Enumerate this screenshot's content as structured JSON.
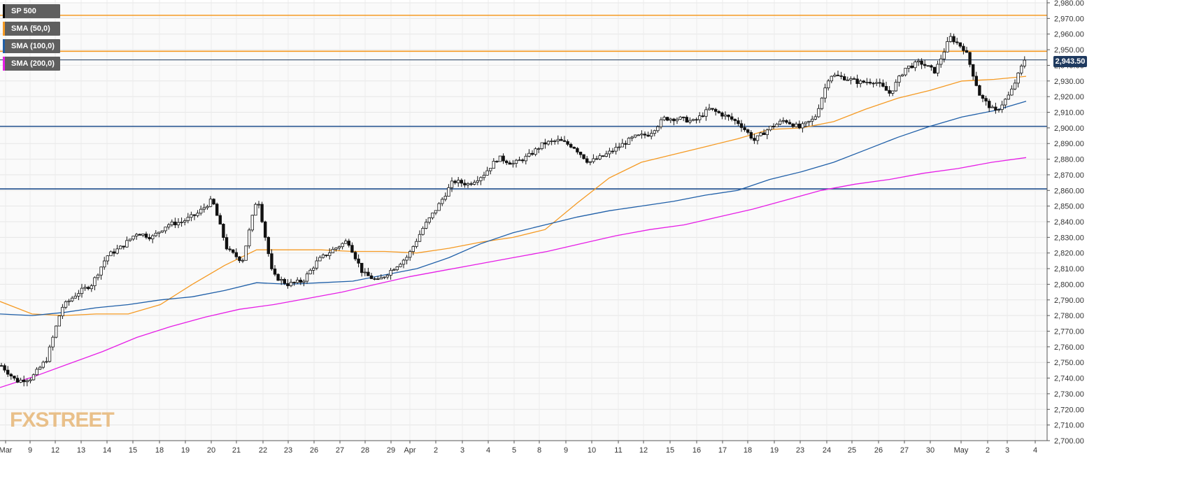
{
  "legend": [
    {
      "label": "SP 500",
      "color": "#000000"
    },
    {
      "label": "SMA (50,0)",
      "color": "#f59a23"
    },
    {
      "label": "SMA (100,0)",
      "color": "#1f5fa8"
    },
    {
      "label": "SMA (200,0)",
      "color": "#e61ee6"
    }
  ],
  "brand": {
    "text": "FXSTREET"
  },
  "price_badge": "2,943.50",
  "chart_data": {
    "type": "candlestick",
    "instrument": "SP 500",
    "timeframe": "1h",
    "y_range": [
      2700,
      2980
    ],
    "y_ticks": [
      "2,700.00",
      "2,710.00",
      "2,720.00",
      "2,730.00",
      "2,740.00",
      "2,750.00",
      "2,760.00",
      "2,770.00",
      "2,780.00",
      "2,790.00",
      "2,800.00",
      "2,810.00",
      "2,820.00",
      "2,830.00",
      "2,840.00",
      "2,850.00",
      "2,860.00",
      "2,870.00",
      "2,880.00",
      "2,890.00",
      "2,900.00",
      "2,910.00",
      "2,920.00",
      "2,930.00",
      "2,940.00",
      "2,950.00",
      "2,960.00",
      "2,970.00",
      "2,980.00"
    ],
    "x_ticks": [
      "Mar",
      "9",
      "12",
      "13",
      "14",
      "15",
      "18",
      "19",
      "20",
      "21",
      "22",
      "23",
      "26",
      "27",
      "28",
      "29",
      "Apr",
      "2",
      "3",
      "4",
      "5",
      "8",
      "9",
      "10",
      "11",
      "12",
      "15",
      "16",
      "17",
      "18",
      "19",
      "23",
      "24",
      "25",
      "26",
      "27",
      "30",
      "May",
      "2",
      "3",
      "4"
    ],
    "grid": true,
    "legend_position": "top-left",
    "horizontal_levels": [
      {
        "value": 2972,
        "color": "#f59a23"
      },
      {
        "value": 2949,
        "color": "#f59a23"
      },
      {
        "value": 2901,
        "color": "#1f4e8c"
      },
      {
        "value": 2861,
        "color": "#1f4e8c"
      },
      {
        "value": 2943.5,
        "color": "#1f3a5f"
      }
    ],
    "sma_50": [
      [
        0,
        2789
      ],
      [
        1,
        2781
      ],
      [
        2,
        2780
      ],
      [
        3,
        2781
      ],
      [
        4,
        2781
      ],
      [
        5,
        2787
      ],
      [
        6,
        2800
      ],
      [
        7,
        2812
      ],
      [
        8,
        2822
      ],
      [
        9,
        2822
      ],
      [
        10,
        2822
      ],
      [
        11,
        2821
      ],
      [
        12,
        2821
      ],
      [
        13,
        2820
      ],
      [
        14,
        2823
      ],
      [
        15,
        2827
      ],
      [
        16,
        2830
      ],
      [
        17,
        2835
      ],
      [
        18,
        2852
      ],
      [
        19,
        2868
      ],
      [
        20,
        2878
      ],
      [
        21,
        2883
      ],
      [
        22,
        2888
      ],
      [
        23,
        2893
      ],
      [
        24,
        2899
      ],
      [
        25,
        2900
      ],
      [
        26,
        2904
      ],
      [
        27,
        2912
      ],
      [
        28,
        2919
      ],
      [
        29,
        2924
      ],
      [
        30,
        2930
      ],
      [
        31,
        2931
      ],
      [
        32,
        2933
      ]
    ],
    "sma_100": [
      [
        0,
        2781
      ],
      [
        1,
        2780
      ],
      [
        2,
        2782
      ],
      [
        3,
        2785
      ],
      [
        4,
        2787
      ],
      [
        5,
        2790
      ],
      [
        6,
        2792
      ],
      [
        7,
        2796
      ],
      [
        8,
        2801
      ],
      [
        9,
        2800
      ],
      [
        10,
        2801
      ],
      [
        11,
        2802
      ],
      [
        12,
        2806
      ],
      [
        13,
        2810
      ],
      [
        14,
        2817
      ],
      [
        15,
        2826
      ],
      [
        16,
        2833
      ],
      [
        17,
        2838
      ],
      [
        18,
        2843
      ],
      [
        19,
        2847
      ],
      [
        20,
        2850
      ],
      [
        21,
        2853
      ],
      [
        22,
        2857
      ],
      [
        23,
        2860
      ],
      [
        24,
        2867
      ],
      [
        25,
        2872
      ],
      [
        26,
        2878
      ],
      [
        27,
        2886
      ],
      [
        28,
        2894
      ],
      [
        29,
        2901
      ],
      [
        30,
        2907
      ],
      [
        31,
        2911
      ],
      [
        32,
        2917
      ]
    ],
    "sma_200": [
      [
        0,
        2734
      ],
      [
        1,
        2741
      ],
      [
        2,
        2749
      ],
      [
        3,
        2757
      ],
      [
        4,
        2766
      ],
      [
        5,
        2773
      ],
      [
        6,
        2779
      ],
      [
        7,
        2784
      ],
      [
        8,
        2787
      ],
      [
        9,
        2791
      ],
      [
        10,
        2795
      ],
      [
        11,
        2800
      ],
      [
        12,
        2805
      ],
      [
        13,
        2809
      ],
      [
        14,
        2813
      ],
      [
        15,
        2817
      ],
      [
        16,
        2821
      ],
      [
        17,
        2826
      ],
      [
        18,
        2831
      ],
      [
        19,
        2835
      ],
      [
        20,
        2838
      ],
      [
        21,
        2843
      ],
      [
        22,
        2848
      ],
      [
        23,
        2854
      ],
      [
        24,
        2860
      ],
      [
        25,
        2864
      ],
      [
        26,
        2867
      ],
      [
        27,
        2871
      ],
      [
        28,
        2874
      ],
      [
        29,
        2878
      ],
      [
        30,
        2881
      ]
    ],
    "ohlc_anchors": [
      [
        0,
        2748
      ],
      [
        1,
        2738
      ],
      [
        2,
        2740
      ],
      [
        3,
        2752
      ],
      [
        4,
        2785
      ],
      [
        5,
        2794
      ],
      [
        6,
        2800
      ],
      [
        7,
        2818
      ],
      [
        8,
        2824
      ],
      [
        9,
        2833
      ],
      [
        10,
        2830
      ],
      [
        11,
        2838
      ],
      [
        12,
        2840
      ],
      [
        13,
        2845
      ],
      [
        14,
        2854
      ],
      [
        15,
        2822
      ],
      [
        16,
        2815
      ],
      [
        17,
        2857
      ],
      [
        18,
        2806
      ],
      [
        19,
        2800
      ],
      [
        20,
        2802
      ],
      [
        21,
        2815
      ],
      [
        22,
        2822
      ],
      [
        23,
        2828
      ],
      [
        24,
        2807
      ],
      [
        25,
        2802
      ],
      [
        26,
        2810
      ],
      [
        27,
        2818
      ],
      [
        28,
        2836
      ],
      [
        29,
        2850
      ],
      [
        30,
        2866
      ],
      [
        31,
        2864
      ],
      [
        32,
        2870
      ],
      [
        33,
        2881
      ],
      [
        34,
        2877
      ],
      [
        35,
        2882
      ],
      [
        36,
        2890
      ],
      [
        37,
        2892
      ],
      [
        38,
        2888
      ],
      [
        39,
        2878
      ],
      [
        40,
        2882
      ],
      [
        41,
        2888
      ],
      [
        42,
        2894
      ],
      [
        43,
        2896
      ],
      [
        44,
        2906
      ],
      [
        45,
        2906
      ],
      [
        46,
        2904
      ],
      [
        47,
        2912
      ],
      [
        48,
        2908
      ],
      [
        49,
        2903
      ],
      [
        50,
        2892
      ],
      [
        51,
        2900
      ],
      [
        52,
        2905
      ],
      [
        53,
        2900
      ],
      [
        54,
        2906
      ],
      [
        55,
        2934
      ],
      [
        56,
        2932
      ],
      [
        57,
        2929
      ],
      [
        58,
        2930
      ],
      [
        59,
        2922
      ],
      [
        60,
        2938
      ],
      [
        61,
        2942
      ],
      [
        62,
        2936
      ],
      [
        63,
        2958
      ],
      [
        64,
        2950
      ],
      [
        65,
        2920
      ],
      [
        66,
        2910
      ],
      [
        67,
        2922
      ],
      [
        68,
        2945
      ]
    ]
  }
}
